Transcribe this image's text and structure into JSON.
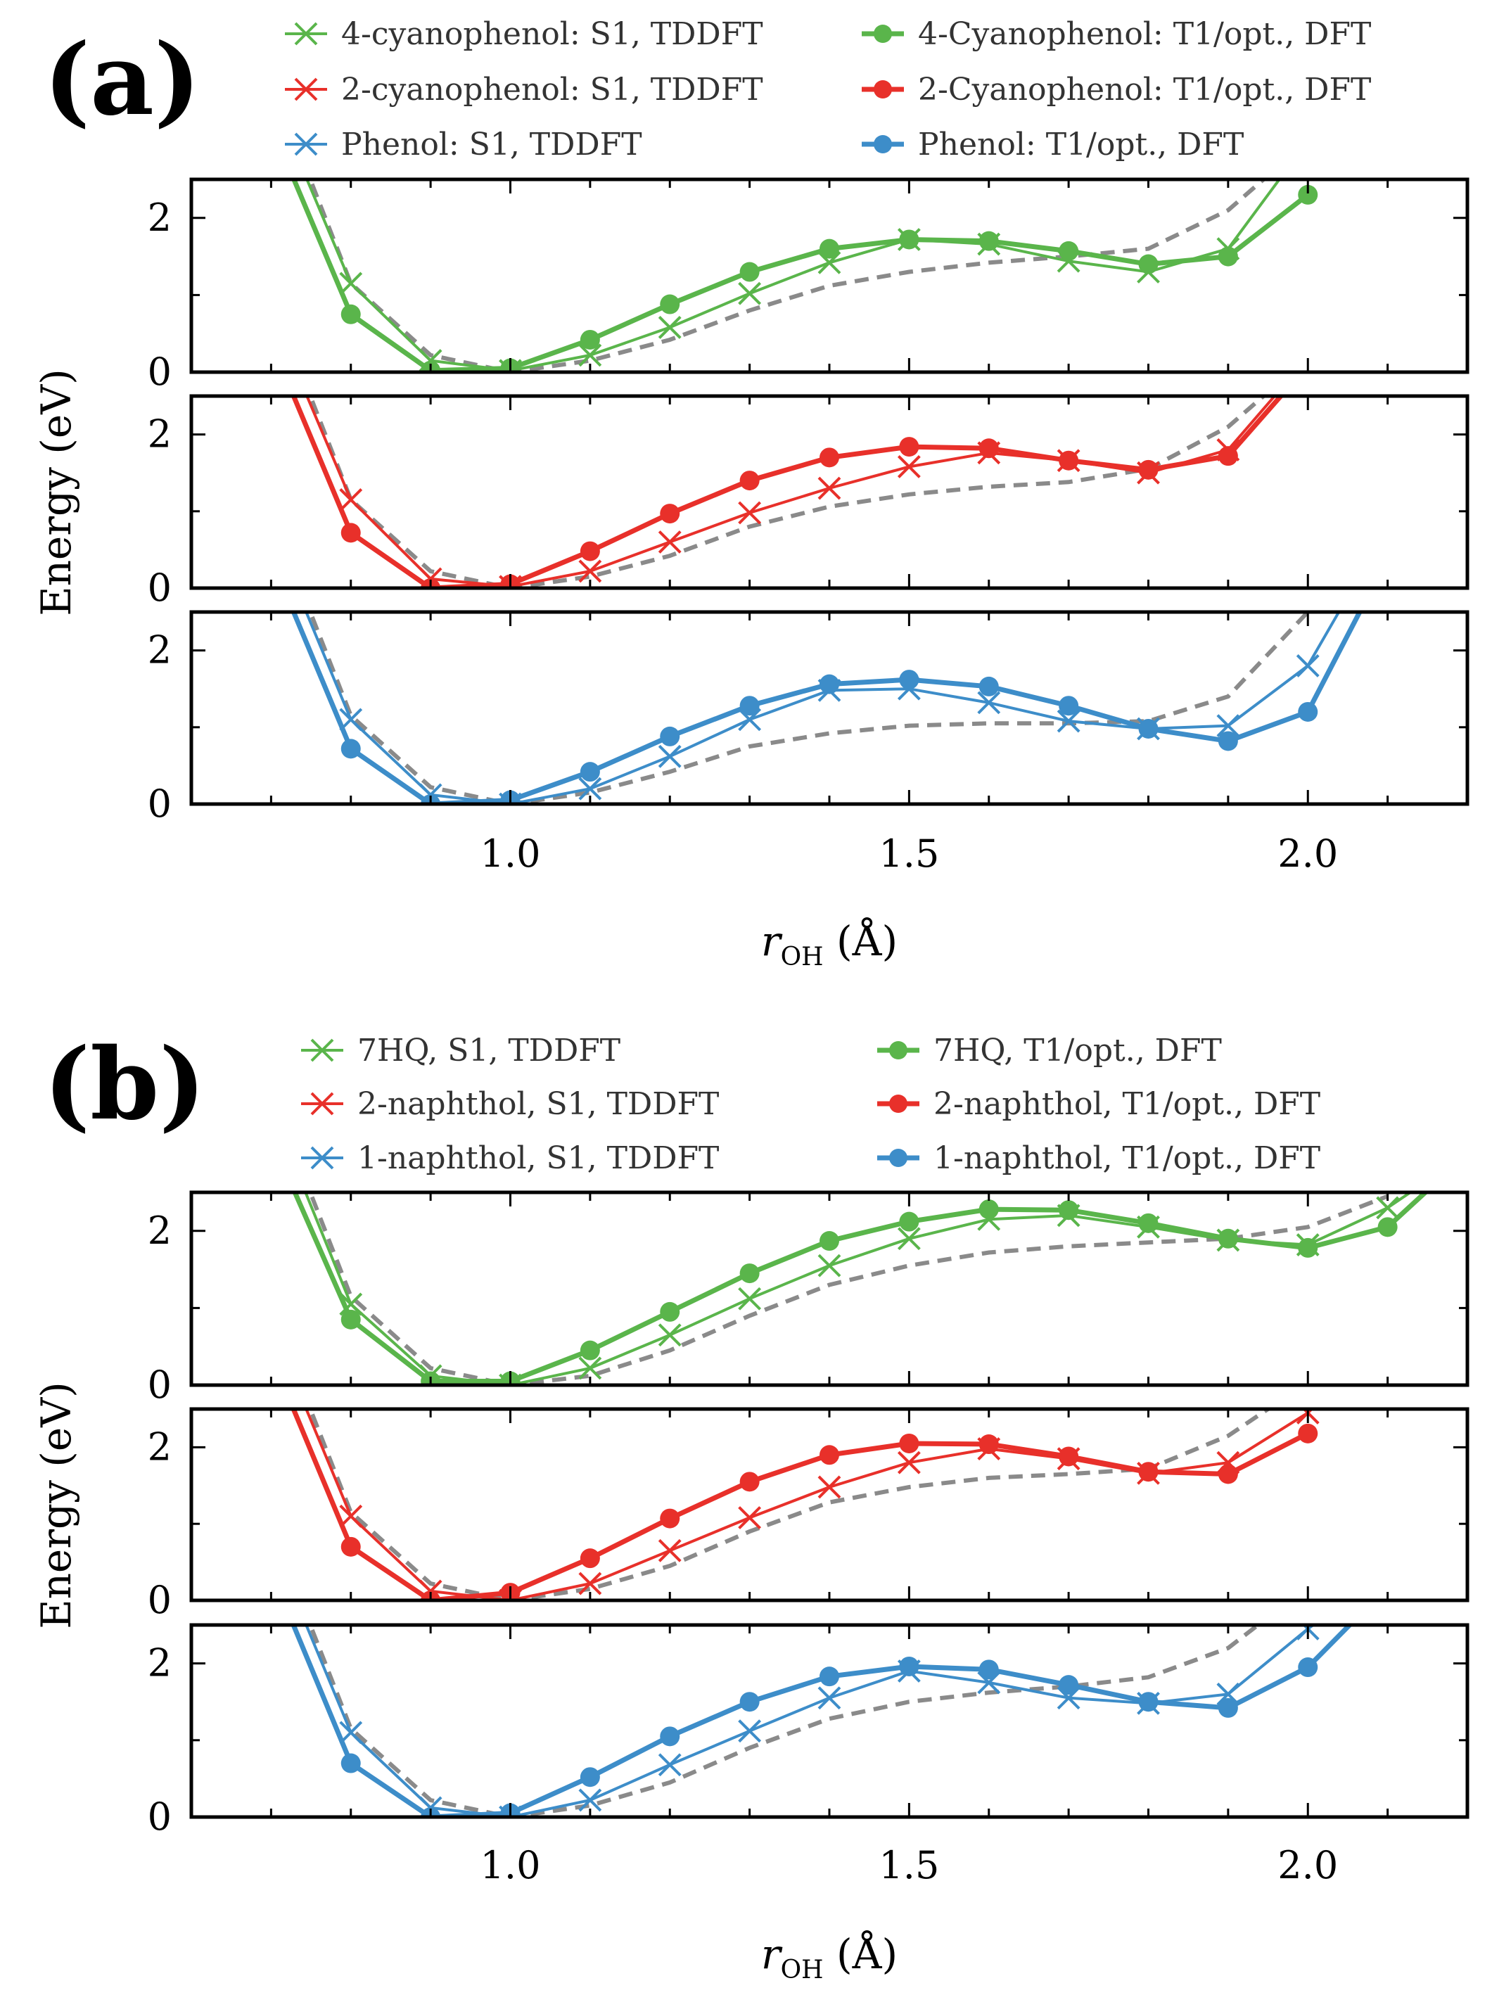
{
  "colors": {
    "green": "#5ab54b",
    "red": "#e8302a",
    "blue": "#3d8dc9",
    "gray": "#8a8a8a",
    "axis": "#000000"
  },
  "chart_data": [
    {
      "panel": "(a)",
      "type": "line",
      "xlabel": "r_OH (Å)",
      "ylabel": "Energy (eV)",
      "xlim": [
        0.6,
        2.2
      ],
      "xticks": [
        1.0,
        1.5,
        2.0
      ],
      "xticklabels": [
        "1.0",
        "1.5",
        "2.0"
      ],
      "ylim": [
        0,
        2.5
      ],
      "yticks": [
        0,
        2
      ],
      "yticklabels": [
        "0",
        "2"
      ],
      "legend": [
        {
          "label": "4-cyanophenol: S1, TDDFT",
          "color": "green",
          "marker": "x"
        },
        {
          "label": "2-cyanophenol: S1, TDDFT",
          "color": "red",
          "marker": "x"
        },
        {
          "label": "Phenol: S1, TDDFT",
          "color": "blue",
          "marker": "x"
        },
        {
          "label": "4-Cyanophenol: T1/opt., DFT",
          "color": "green",
          "marker": "o"
        },
        {
          "label": "2-Cyanophenol: T1/opt., DFT",
          "color": "red",
          "marker": "o"
        },
        {
          "label": "Phenol: T1/opt., DFT",
          "color": "blue",
          "marker": "o"
        }
      ],
      "subplots": [
        {
          "color": "green",
          "s1": {
            "x": [
              0.7,
              0.8,
              0.9,
              1.0,
              1.1,
              1.2,
              1.3,
              1.4,
              1.5,
              1.6,
              1.7,
              1.8,
              1.9,
              2.0
            ],
            "y": [
              3.6,
              1.15,
              0.15,
              0.02,
              0.22,
              0.58,
              1.02,
              1.42,
              1.72,
              1.66,
              1.44,
              1.3,
              1.6,
              3.0
            ]
          },
          "t1": {
            "x": [
              0.7,
              0.8,
              0.9,
              1.0,
              1.1,
              1.2,
              1.3,
              1.4,
              1.5,
              1.6,
              1.7,
              1.8,
              1.9,
              2.0
            ],
            "y": [
              3.2,
              0.75,
              0.02,
              0.05,
              0.42,
              0.88,
              1.3,
              1.6,
              1.72,
              1.7,
              1.57,
              1.4,
              1.5,
              2.3
            ]
          },
          "s0": {
            "x": [
              0.7,
              0.8,
              0.9,
              1.0,
              1.1,
              1.2,
              1.3,
              1.4,
              1.5,
              1.6,
              1.7,
              1.8,
              1.9,
              2.0
            ],
            "y": [
              3.8,
              1.15,
              0.22,
              0.0,
              0.15,
              0.42,
              0.8,
              1.12,
              1.3,
              1.42,
              1.5,
              1.6,
              2.1,
              3.0
            ]
          }
        },
        {
          "color": "red",
          "s1": {
            "x": [
              0.7,
              0.8,
              0.9,
              1.0,
              1.1,
              1.2,
              1.3,
              1.4,
              1.5,
              1.6,
              1.7,
              1.8,
              1.9,
              2.0
            ],
            "y": [
              3.6,
              1.15,
              0.12,
              0.02,
              0.22,
              0.6,
              0.98,
              1.3,
              1.58,
              1.76,
              1.66,
              1.5,
              1.8,
              3.0
            ]
          },
          "t1": {
            "x": [
              0.7,
              0.8,
              0.9,
              1.0,
              1.1,
              1.2,
              1.3,
              1.4,
              1.5,
              1.6,
              1.7,
              1.8,
              1.9,
              2.0
            ],
            "y": [
              3.2,
              0.72,
              0.0,
              0.05,
              0.48,
              0.97,
              1.4,
              1.7,
              1.84,
              1.82,
              1.66,
              1.54,
              1.72,
              2.9
            ]
          },
          "s0": {
            "x": [
              0.7,
              0.8,
              0.9,
              1.0,
              1.1,
              1.2,
              1.3,
              1.4,
              1.5,
              1.6,
              1.7,
              1.8,
              1.9,
              2.0
            ],
            "y": [
              3.8,
              1.15,
              0.22,
              0.0,
              0.15,
              0.42,
              0.8,
              1.06,
              1.22,
              1.32,
              1.38,
              1.55,
              2.1,
              3.0
            ]
          }
        },
        {
          "color": "blue",
          "s1": {
            "x": [
              0.7,
              0.8,
              0.9,
              1.0,
              1.1,
              1.2,
              1.3,
              1.4,
              1.5,
              1.6,
              1.7,
              1.8,
              1.9,
              2.0,
              2.1
            ],
            "y": [
              3.6,
              1.1,
              0.12,
              0.0,
              0.2,
              0.62,
              1.1,
              1.48,
              1.5,
              1.32,
              1.08,
              0.98,
              1.02,
              1.8,
              3.6
            ]
          },
          "t1": {
            "x": [
              0.7,
              0.8,
              0.9,
              1.0,
              1.1,
              1.2,
              1.3,
              1.4,
              1.5,
              1.6,
              1.7,
              1.8,
              1.9,
              2.0,
              2.1
            ],
            "y": [
              3.2,
              0.72,
              0.0,
              0.05,
              0.42,
              0.88,
              1.28,
              1.56,
              1.62,
              1.53,
              1.28,
              0.98,
              0.82,
              1.2,
              3.2
            ]
          },
          "s0": {
            "x": [
              0.7,
              0.8,
              0.9,
              1.0,
              1.1,
              1.2,
              1.3,
              1.4,
              1.5,
              1.6,
              1.7,
              1.8,
              1.9,
              2.0
            ],
            "y": [
              3.8,
              1.15,
              0.22,
              0.0,
              0.15,
              0.42,
              0.75,
              0.92,
              1.02,
              1.05,
              1.05,
              1.08,
              1.4,
              2.5
            ]
          }
        }
      ]
    },
    {
      "panel": "(b)",
      "type": "line",
      "xlabel": "r_OH (Å)",
      "ylabel": "Energy (eV)",
      "xlim": [
        0.6,
        2.2
      ],
      "xticks": [
        1.0,
        1.5,
        2.0
      ],
      "xticklabels": [
        "1.0",
        "1.5",
        "2.0"
      ],
      "ylim": [
        0,
        2.5
      ],
      "yticks": [
        0,
        2
      ],
      "yticklabels": [
        "0",
        "2"
      ],
      "legend": [
        {
          "label": "7HQ, S1, TDDFT",
          "color": "green",
          "marker": "x"
        },
        {
          "label": "2-naphthol, S1, TDDFT",
          "color": "red",
          "marker": "x"
        },
        {
          "label": "1-naphthol, S1, TDDFT",
          "color": "blue",
          "marker": "x"
        },
        {
          "label": "7HQ, T1/opt., DFT",
          "color": "green",
          "marker": "o"
        },
        {
          "label": "2-naphthol, T1/opt., DFT",
          "color": "red",
          "marker": "o"
        },
        {
          "label": "1-naphthol, T1/opt., DFT",
          "color": "blue",
          "marker": "o"
        }
      ],
      "subplots": [
        {
          "color": "green",
          "s1": {
            "x": [
              0.7,
              0.8,
              0.9,
              1.0,
              1.1,
              1.2,
              1.3,
              1.4,
              1.5,
              1.6,
              1.7,
              1.8,
              1.9,
              2.0,
              2.1,
              2.2
            ],
            "y": [
              3.6,
              1.05,
              0.12,
              0.0,
              0.22,
              0.65,
              1.12,
              1.55,
              1.9,
              2.15,
              2.2,
              2.05,
              1.88,
              1.82,
              2.3,
              3.0
            ]
          },
          "t1": {
            "x": [
              0.7,
              0.8,
              0.9,
              1.0,
              1.1,
              1.2,
              1.3,
              1.4,
              1.5,
              1.6,
              1.7,
              1.8,
              1.9,
              2.0,
              2.1,
              2.2
            ],
            "y": [
              3.2,
              0.85,
              0.05,
              0.05,
              0.45,
              0.95,
              1.45,
              1.87,
              2.12,
              2.28,
              2.27,
              2.1,
              1.9,
              1.78,
              2.05,
              3.0
            ]
          },
          "s0": {
            "x": [
              0.7,
              0.8,
              0.9,
              1.0,
              1.1,
              1.2,
              1.3,
              1.4,
              1.5,
              1.6,
              1.7,
              1.8,
              1.9,
              2.0,
              2.1
            ],
            "y": [
              3.8,
              1.15,
              0.22,
              0.0,
              0.12,
              0.45,
              0.9,
              1.3,
              1.55,
              1.72,
              1.8,
              1.85,
              1.9,
              2.05,
              2.45
            ]
          }
        },
        {
          "color": "red",
          "s1": {
            "x": [
              0.7,
              0.8,
              0.9,
              1.0,
              1.1,
              1.2,
              1.3,
              1.4,
              1.5,
              1.6,
              1.7,
              1.8,
              1.9,
              2.0
            ],
            "y": [
              3.6,
              1.1,
              0.12,
              0.0,
              0.22,
              0.65,
              1.08,
              1.48,
              1.8,
              1.98,
              1.85,
              1.66,
              1.8,
              2.45
            ]
          },
          "t1": {
            "x": [
              0.7,
              0.8,
              0.9,
              1.0,
              1.1,
              1.2,
              1.3,
              1.4,
              1.5,
              1.6,
              1.7,
              1.8,
              1.9,
              2.0
            ],
            "y": [
              3.2,
              0.7,
              0.0,
              0.1,
              0.55,
              1.07,
              1.55,
              1.9,
              2.05,
              2.04,
              1.88,
              1.68,
              1.65,
              2.18
            ]
          },
          "s0": {
            "x": [
              0.7,
              0.8,
              0.9,
              1.0,
              1.1,
              1.2,
              1.3,
              1.4,
              1.5,
              1.6,
              1.7,
              1.8,
              1.9,
              2.0
            ],
            "y": [
              3.8,
              1.15,
              0.22,
              0.0,
              0.15,
              0.45,
              0.9,
              1.28,
              1.48,
              1.6,
              1.65,
              1.72,
              2.15,
              2.85
            ]
          }
        },
        {
          "color": "blue",
          "s1": {
            "x": [
              0.7,
              0.8,
              0.9,
              1.0,
              1.1,
              1.2,
              1.3,
              1.4,
              1.5,
              1.6,
              1.7,
              1.8,
              1.9,
              2.0,
              2.1
            ],
            "y": [
              3.6,
              1.1,
              0.12,
              0.0,
              0.22,
              0.68,
              1.12,
              1.55,
              1.9,
              1.75,
              1.55,
              1.48,
              1.6,
              2.45,
              3.2
            ]
          },
          "t1": {
            "x": [
              0.7,
              0.8,
              0.9,
              1.0,
              1.1,
              1.2,
              1.3,
              1.4,
              1.5,
              1.6,
              1.7,
              1.8,
              1.9,
              2.0,
              2.1
            ],
            "y": [
              3.2,
              0.7,
              0.0,
              0.05,
              0.52,
              1.05,
              1.5,
              1.83,
              1.96,
              1.92,
              1.72,
              1.5,
              1.42,
              1.95,
              3.0
            ]
          },
          "s0": {
            "x": [
              0.7,
              0.8,
              0.9,
              1.0,
              1.1,
              1.2,
              1.3,
              1.4,
              1.5,
              1.6,
              1.7,
              1.8,
              1.9,
              2.0
            ],
            "y": [
              3.8,
              1.15,
              0.22,
              0.0,
              0.15,
              0.45,
              0.9,
              1.28,
              1.5,
              1.62,
              1.7,
              1.82,
              2.2,
              3.0
            ]
          }
        }
      ]
    }
  ]
}
